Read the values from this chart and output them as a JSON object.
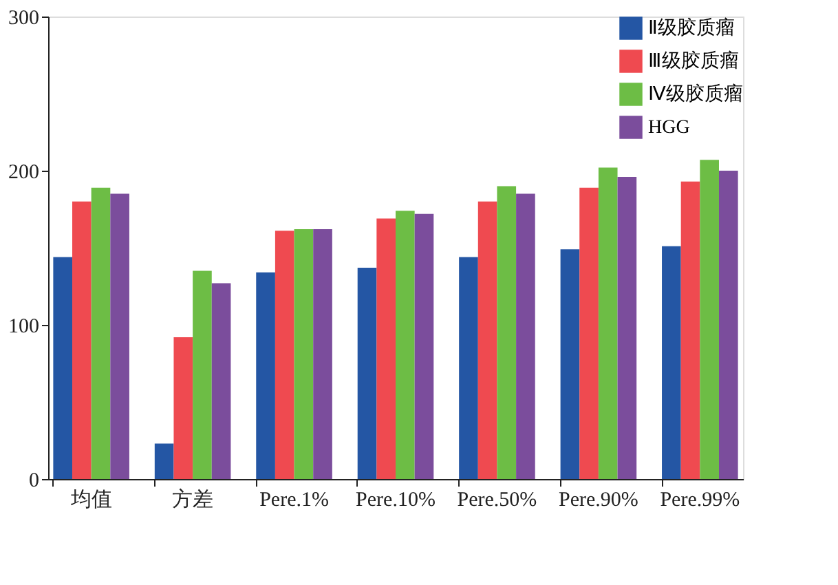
{
  "chart_data": {
    "type": "bar",
    "categories": [
      "均值",
      "方差",
      "Pere.1%",
      "Pere.10%",
      "Pere.50%",
      "Pere.90%",
      "Pere.99%"
    ],
    "series": [
      {
        "name": "Ⅱ级胶质瘤",
        "color": "#2456a4",
        "values": [
          144,
          23,
          134,
          137,
          144,
          149,
          151
        ]
      },
      {
        "name": "Ⅲ级胶质瘤",
        "color": "#ef4a50",
        "values": [
          180,
          92,
          161,
          169,
          180,
          189,
          193
        ]
      },
      {
        "name": "Ⅳ级胶质瘤",
        "color": "#6dbd45",
        "values": [
          189,
          135,
          162,
          174,
          190,
          202,
          207
        ]
      },
      {
        "name": "HGG",
        "color": "#7b4d9c",
        "values": [
          185,
          127,
          162,
          172,
          185,
          196,
          200
        ]
      }
    ],
    "ylim": [
      0,
      300
    ],
    "yticks": [
      0,
      100,
      200,
      300
    ],
    "grid": false,
    "legend": "top right"
  }
}
